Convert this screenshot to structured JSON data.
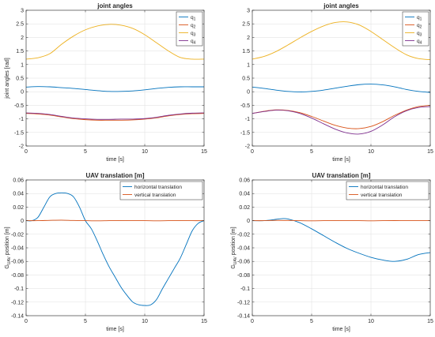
{
  "chart_data": [
    {
      "type": "line",
      "title": "joint angles",
      "xlabel": "time [s]",
      "ylabel": "joint angles [rad]",
      "xlim": [
        0,
        15
      ],
      "ylim": [
        -2,
        3
      ],
      "xticks": [
        0,
        5,
        10,
        15
      ],
      "yticks": [
        -2,
        -1.5,
        -1,
        -0.5,
        0,
        0.5,
        1,
        1.5,
        2,
        2.5,
        3
      ],
      "grid": true,
      "legend_position": "top-right",
      "series": [
        {
          "name": "q",
          "sub": "1",
          "color": "#0072BD",
          "x": [
            0,
            1,
            2,
            3,
            4,
            5,
            6,
            7,
            8,
            9,
            10,
            11,
            12,
            13,
            14,
            15
          ],
          "y": [
            0.17,
            0.19,
            0.18,
            0.15,
            0.12,
            0.08,
            0.04,
            0.01,
            0.01,
            0.03,
            0.07,
            0.12,
            0.16,
            0.18,
            0.18,
            0.18
          ]
        },
        {
          "name": "q",
          "sub": "2",
          "color": "#D95319",
          "x": [
            0,
            1,
            2,
            3,
            4,
            5,
            6,
            7,
            8,
            9,
            10,
            11,
            12,
            13,
            14,
            15
          ],
          "y": [
            -0.8,
            -0.82,
            -0.86,
            -0.93,
            -0.99,
            -1.03,
            -1.05,
            -1.05,
            -1.05,
            -1.04,
            -1.01,
            -0.96,
            -0.89,
            -0.84,
            -0.81,
            -0.8
          ]
        },
        {
          "name": "q",
          "sub": "3",
          "color": "#EDB120",
          "x": [
            0,
            1,
            2,
            3,
            4,
            5,
            6,
            7,
            8,
            9,
            10,
            11,
            12,
            13,
            14,
            15
          ],
          "y": [
            1.2,
            1.25,
            1.4,
            1.75,
            2.05,
            2.28,
            2.42,
            2.48,
            2.45,
            2.33,
            2.1,
            1.8,
            1.5,
            1.26,
            1.2,
            1.2
          ]
        },
        {
          "name": "q",
          "sub": "4",
          "color": "#7E2F8E",
          "x": [
            0,
            1,
            2,
            3,
            4,
            5,
            6,
            7,
            8,
            9,
            10,
            11,
            12,
            13,
            14,
            15
          ],
          "y": [
            -0.78,
            -0.8,
            -0.84,
            -0.91,
            -0.97,
            -1.0,
            -1.02,
            -1.02,
            -1.01,
            -1.01,
            -0.99,
            -0.94,
            -0.87,
            -0.82,
            -0.79,
            -0.78
          ]
        }
      ]
    },
    {
      "type": "line",
      "title": "joint angles",
      "xlabel": "time [s]",
      "ylabel": "",
      "xlim": [
        0,
        15
      ],
      "ylim": [
        -2,
        3
      ],
      "xticks": [
        0,
        5,
        10,
        15
      ],
      "yticks": [
        -2,
        -1.5,
        -1,
        -0.5,
        0,
        0.5,
        1,
        1.5,
        2,
        2.5,
        3
      ],
      "grid": true,
      "legend_position": "top-right",
      "series": [
        {
          "name": "q",
          "sub": "1",
          "color": "#0072BD",
          "x": [
            0,
            1,
            2,
            3,
            4,
            5,
            6,
            7,
            8,
            9,
            10,
            11,
            12,
            13,
            14,
            15
          ],
          "y": [
            0.17,
            0.12,
            0.06,
            0.01,
            -0.01,
            0.01,
            0.06,
            0.13,
            0.2,
            0.26,
            0.28,
            0.25,
            0.18,
            0.08,
            0.01,
            -0.03
          ]
        },
        {
          "name": "q",
          "sub": "2",
          "color": "#D95319",
          "x": [
            0,
            1,
            2,
            3,
            4,
            5,
            6,
            7,
            8,
            9,
            10,
            11,
            12,
            13,
            14,
            15
          ],
          "y": [
            -0.8,
            -0.72,
            -0.67,
            -0.69,
            -0.77,
            -0.91,
            -1.08,
            -1.24,
            -1.34,
            -1.36,
            -1.28,
            -1.1,
            -0.87,
            -0.68,
            -0.55,
            -0.5
          ]
        },
        {
          "name": "q",
          "sub": "3",
          "color": "#EDB120",
          "x": [
            0,
            1,
            2,
            3,
            4,
            5,
            6,
            7,
            8,
            9,
            10,
            11,
            12,
            13,
            14,
            15
          ],
          "y": [
            1.2,
            1.3,
            1.48,
            1.72,
            1.98,
            2.22,
            2.42,
            2.55,
            2.57,
            2.46,
            2.22,
            1.92,
            1.62,
            1.36,
            1.22,
            1.18
          ]
        },
        {
          "name": "q",
          "sub": "4",
          "color": "#7E2F8E",
          "x": [
            0,
            1,
            2,
            3,
            4,
            5,
            6,
            7,
            8,
            9,
            10,
            11,
            12,
            13,
            14,
            15
          ],
          "y": [
            -0.8,
            -0.73,
            -0.68,
            -0.7,
            -0.8,
            -0.97,
            -1.18,
            -1.38,
            -1.52,
            -1.56,
            -1.46,
            -1.22,
            -0.92,
            -0.7,
            -0.58,
            -0.55
          ]
        }
      ]
    },
    {
      "type": "line",
      "title": "UAV translation [m]",
      "xlabel": "time [s]",
      "ylabel": "G",
      "ylabel_sub": "UAV",
      "ylabel_rest": " position [m]",
      "xlim": [
        0,
        15
      ],
      "ylim": [
        -0.14,
        0.06
      ],
      "xticks": [
        0,
        5,
        10,
        15
      ],
      "yticks": [
        -0.14,
        -0.12,
        -0.1,
        -0.08,
        -0.06,
        -0.04,
        -0.02,
        0,
        0.02,
        0.04,
        0.06
      ],
      "grid": true,
      "legend_position": "top-right",
      "series": [
        {
          "name": "horizontal translation",
          "color": "#0072BD",
          "x": [
            0,
            0.5,
            1,
            1.5,
            2,
            2.5,
            3,
            3.5,
            4,
            4.5,
            5,
            5.5,
            6,
            6.5,
            7,
            7.5,
            8,
            8.5,
            9,
            9.5,
            10,
            10.5,
            11,
            11.5,
            12,
            12.5,
            13,
            13.5,
            14,
            14.5,
            15
          ],
          "y": [
            0,
            0,
            0.005,
            0.02,
            0.035,
            0.04,
            0.041,
            0.04,
            0.035,
            0.02,
            0,
            -0.012,
            -0.03,
            -0.05,
            -0.068,
            -0.083,
            -0.098,
            -0.11,
            -0.12,
            -0.124,
            -0.125,
            -0.124,
            -0.116,
            -0.1,
            -0.085,
            -0.07,
            -0.055,
            -0.035,
            -0.015,
            -0.004,
            0
          ]
        },
        {
          "name": "vertical translation",
          "color": "#D95319",
          "x": [
            0,
            1,
            2,
            3,
            4,
            5,
            6,
            7,
            8,
            9,
            10,
            11,
            12,
            13,
            14,
            15
          ],
          "y": [
            0,
            0,
            0.0005,
            0.0008,
            0.0003,
            0,
            -0.0003,
            0,
            0.0002,
            0,
            0,
            -0.0002,
            0,
            0.0002,
            0,
            0
          ]
        }
      ]
    },
    {
      "type": "line",
      "title": "UAV translation [m]",
      "xlabel": "time [s]",
      "ylabel": "G",
      "ylabel_sub": "UAV",
      "ylabel_rest": " position [m]",
      "xlim": [
        0,
        15
      ],
      "ylim": [
        -0.14,
        0.06
      ],
      "xticks": [
        0,
        5,
        10,
        15
      ],
      "yticks": [
        -0.14,
        -0.12,
        -0.1,
        -0.08,
        -0.06,
        -0.04,
        -0.02,
        0,
        0.02,
        0.04,
        0.06
      ],
      "grid": true,
      "legend_position": "top-right",
      "series": [
        {
          "name": "horizontal translation",
          "color": "#0072BD",
          "x": [
            0,
            1,
            2,
            2.5,
            3,
            4,
            5,
            6,
            7,
            8,
            9,
            10,
            11,
            12,
            13,
            14,
            15
          ],
          "y": [
            0,
            0,
            0.002,
            0.003,
            0.0025,
            -0.003,
            -0.012,
            -0.022,
            -0.032,
            -0.041,
            -0.048,
            -0.054,
            -0.058,
            -0.06,
            -0.057,
            -0.05,
            -0.047
          ]
        },
        {
          "name": "vertical translation",
          "color": "#D95319",
          "x": [
            0,
            1,
            2,
            3,
            4,
            5,
            6,
            7,
            8,
            9,
            10,
            11,
            12,
            13,
            14,
            15
          ],
          "y": [
            0,
            0,
            0.0005,
            0.0003,
            0,
            -0.0002,
            0,
            0.0002,
            0,
            0,
            -0.0002,
            0,
            0.0001,
            0,
            0,
            0
          ]
        }
      ]
    }
  ]
}
